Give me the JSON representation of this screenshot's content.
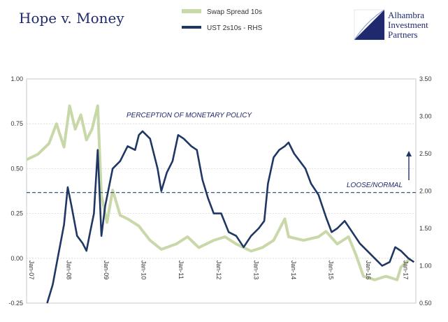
{
  "chart_data": {
    "type": "line",
    "title": "Hope v. Money",
    "brand": {
      "line1": "Alhambra",
      "line2": "Investment",
      "line3": "Partners"
    },
    "x_ticks": [
      "Jan-07",
      "Jan-08",
      "Jan-09",
      "Jan-10",
      "Jan-11",
      "Jan-12",
      "Jan-13",
      "Jan-14",
      "Jan-15",
      "Jan-16",
      "Jan-17"
    ],
    "y_left": {
      "ticks": [
        "1.00",
        "0.75",
        "0.50",
        "0.25",
        "0.00",
        "-0.25"
      ],
      "lim": [
        -0.25,
        1.0
      ]
    },
    "y_right": {
      "ticks": [
        "3.50",
        "3.00",
        "2.50",
        "2.00",
        "1.50",
        "1.00",
        "0.50"
      ],
      "lim": [
        0.5,
        3.5
      ]
    },
    "annotations": {
      "perception": "PERCEPTION OF MONETARY POLICY",
      "loose": "LOOSE/NORMAL",
      "reference_level_rhs": 1.98
    },
    "series": [
      {
        "name": "Swap Spread 10s",
        "axis": "left",
        "color": "#c9d8a8",
        "points": [
          [
            2007.0,
            0.55
          ],
          [
            2007.3,
            0.58
          ],
          [
            2007.6,
            0.64
          ],
          [
            2007.8,
            0.75
          ],
          [
            2008.0,
            0.62
          ],
          [
            2008.15,
            0.85
          ],
          [
            2008.3,
            0.72
          ],
          [
            2008.45,
            0.8
          ],
          [
            2008.6,
            0.66
          ],
          [
            2008.75,
            0.72
          ],
          [
            2008.9,
            0.85
          ],
          [
            2009.0,
            0.35
          ],
          [
            2009.15,
            0.2
          ],
          [
            2009.3,
            0.38
          ],
          [
            2009.5,
            0.24
          ],
          [
            2009.7,
            0.22
          ],
          [
            2010.0,
            0.18
          ],
          [
            2010.3,
            0.1
          ],
          [
            2010.6,
            0.05
          ],
          [
            2011.0,
            0.08
          ],
          [
            2011.3,
            0.12
          ],
          [
            2011.6,
            0.06
          ],
          [
            2012.0,
            0.1
          ],
          [
            2012.3,
            0.12
          ],
          [
            2012.6,
            0.08
          ],
          [
            2013.0,
            0.04
          ],
          [
            2013.3,
            0.06
          ],
          [
            2013.6,
            0.1
          ],
          [
            2013.9,
            0.22
          ],
          [
            2014.0,
            0.12
          ],
          [
            2014.4,
            0.1
          ],
          [
            2014.8,
            0.12
          ],
          [
            2015.0,
            0.15
          ],
          [
            2015.3,
            0.08
          ],
          [
            2015.6,
            0.12
          ],
          [
            2015.8,
            0.02
          ],
          [
            2016.0,
            -0.1
          ],
          [
            2016.3,
            -0.12
          ],
          [
            2016.6,
            -0.1
          ],
          [
            2016.9,
            -0.12
          ],
          [
            2017.0,
            -0.05
          ],
          [
            2017.25,
            0.0
          ]
        ]
      },
      {
        "name": "UST 2s10s - RHS",
        "axis": "right",
        "color": "#1f3764",
        "points": [
          [
            2007.55,
            0.5
          ],
          [
            2007.7,
            0.75
          ],
          [
            2007.85,
            1.15
          ],
          [
            2008.0,
            1.55
          ],
          [
            2008.1,
            2.05
          ],
          [
            2008.2,
            1.8
          ],
          [
            2008.35,
            1.4
          ],
          [
            2008.5,
            1.3
          ],
          [
            2008.6,
            1.2
          ],
          [
            2008.7,
            1.45
          ],
          [
            2008.8,
            1.7
          ],
          [
            2008.9,
            2.55
          ],
          [
            2009.0,
            1.4
          ],
          [
            2009.1,
            1.8
          ],
          [
            2009.3,
            2.3
          ],
          [
            2009.5,
            2.4
          ],
          [
            2009.7,
            2.6
          ],
          [
            2009.9,
            2.55
          ],
          [
            2010.0,
            2.75
          ],
          [
            2010.1,
            2.8
          ],
          [
            2010.3,
            2.7
          ],
          [
            2010.5,
            2.3
          ],
          [
            2010.6,
            2.0
          ],
          [
            2010.75,
            2.25
          ],
          [
            2010.9,
            2.4
          ],
          [
            2011.05,
            2.75
          ],
          [
            2011.2,
            2.7
          ],
          [
            2011.4,
            2.6
          ],
          [
            2011.55,
            2.55
          ],
          [
            2011.7,
            2.15
          ],
          [
            2011.85,
            1.9
          ],
          [
            2012.0,
            1.7
          ],
          [
            2012.2,
            1.7
          ],
          [
            2012.4,
            1.45
          ],
          [
            2012.6,
            1.4
          ],
          [
            2012.8,
            1.25
          ],
          [
            2013.0,
            1.4
          ],
          [
            2013.2,
            1.5
          ],
          [
            2013.35,
            1.6
          ],
          [
            2013.45,
            2.1
          ],
          [
            2013.6,
            2.45
          ],
          [
            2013.75,
            2.55
          ],
          [
            2013.9,
            2.6
          ],
          [
            2014.0,
            2.65
          ],
          [
            2014.15,
            2.5
          ],
          [
            2014.3,
            2.4
          ],
          [
            2014.45,
            2.3
          ],
          [
            2014.6,
            2.1
          ],
          [
            2014.8,
            1.95
          ],
          [
            2015.0,
            1.65
          ],
          [
            2015.15,
            1.45
          ],
          [
            2015.3,
            1.5
          ],
          [
            2015.5,
            1.6
          ],
          [
            2015.7,
            1.45
          ],
          [
            2015.9,
            1.3
          ],
          [
            2016.1,
            1.2
          ],
          [
            2016.3,
            1.1
          ],
          [
            2016.5,
            1.0
          ],
          [
            2016.7,
            1.05
          ],
          [
            2016.85,
            1.25
          ],
          [
            2017.0,
            1.2
          ],
          [
            2017.2,
            1.1
          ],
          [
            2017.35,
            1.05
          ]
        ]
      }
    ]
  }
}
